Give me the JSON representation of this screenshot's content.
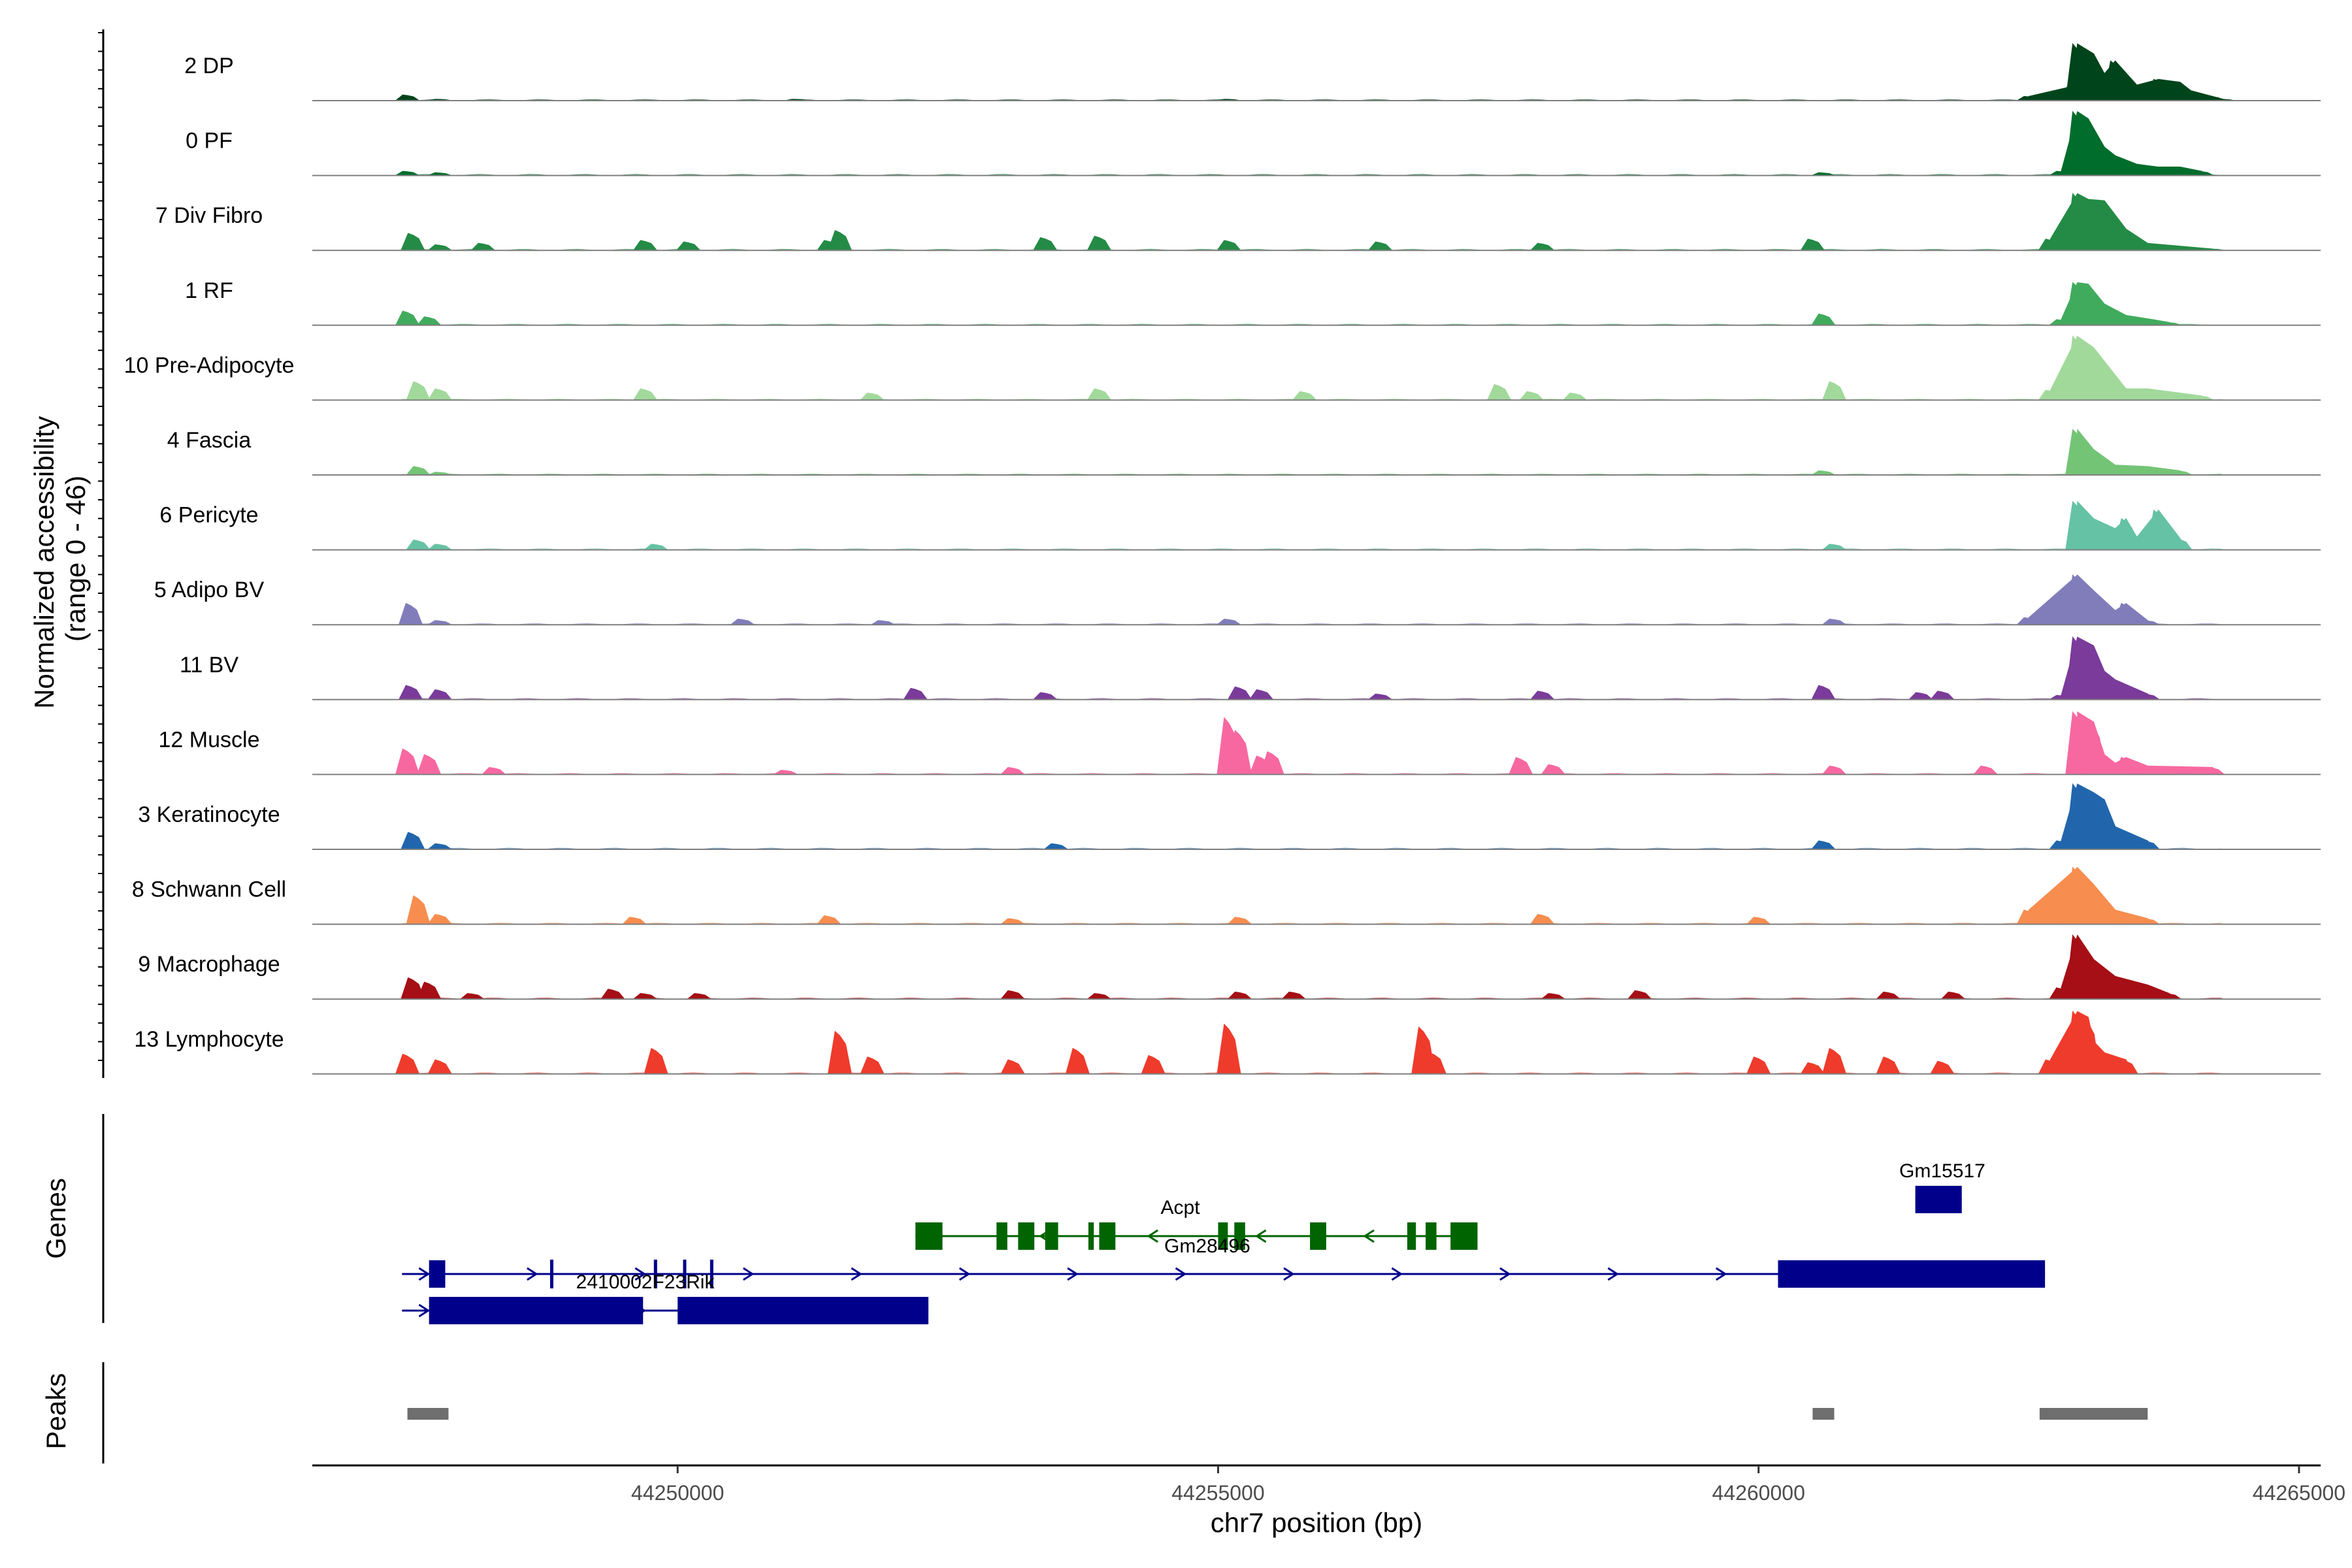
{
  "chart_data": {
    "type": "area",
    "chromosome": "chr7",
    "xlabel": "chr7 position (bp)",
    "ylabel": "Normalized accessibility\n(range 0 - 46)",
    "xlim": [
      44246620,
      44265200
    ],
    "xticks": [
      44250000,
      44255000,
      44260000,
      44265000
    ],
    "xtick_labels": [
      "44250000",
      "44255000",
      "44260000",
      "44265000"
    ],
    "ylim": [
      0,
      46
    ],
    "grid": false,
    "series": [
      {
        "name": "2 DP",
        "color": "#00441b",
        "points": [
          [
            44247500,
            4
          ],
          [
            44247800,
            1
          ],
          [
            44251100,
            1
          ],
          [
            44255100,
            1
          ],
          [
            44262500,
            3
          ],
          [
            44262900,
            10
          ],
          [
            44262950,
            40
          ],
          [
            44263100,
            33
          ],
          [
            44263200,
            19
          ],
          [
            44263300,
            28
          ],
          [
            44263500,
            11
          ],
          [
            44263700,
            15
          ],
          [
            44263900,
            13
          ],
          [
            44264000,
            7
          ],
          [
            44264200,
            3
          ],
          [
            44264300,
            1
          ]
        ]
      },
      {
        "name": "0 PF",
        "color": "#006d2c",
        "points": [
          [
            44247500,
            3
          ],
          [
            44247800,
            2
          ],
          [
            44260600,
            2
          ],
          [
            44262800,
            3
          ],
          [
            44262950,
            45
          ],
          [
            44263050,
            40
          ],
          [
            44263200,
            20
          ],
          [
            44263300,
            14
          ],
          [
            44263500,
            8
          ],
          [
            44263700,
            6
          ],
          [
            44263900,
            6
          ],
          [
            44264100,
            3
          ]
        ]
      },
      {
        "name": "7 Div Fibro",
        "color": "#238b45",
        "points": [
          [
            44247550,
            12
          ],
          [
            44247800,
            4
          ],
          [
            44248200,
            5
          ],
          [
            44249700,
            7
          ],
          [
            44250100,
            6
          ],
          [
            44251400,
            7
          ],
          [
            44251500,
            14
          ],
          [
            44253400,
            9
          ],
          [
            44253900,
            10
          ],
          [
            44255100,
            7
          ],
          [
            44256500,
            6
          ],
          [
            44258000,
            5
          ],
          [
            44260500,
            8
          ],
          [
            44262700,
            8
          ],
          [
            44262950,
            40
          ],
          [
            44263050,
            36
          ],
          [
            44263200,
            35
          ],
          [
            44263400,
            15
          ],
          [
            44263600,
            5
          ],
          [
            44264200,
            1
          ]
        ]
      },
      {
        "name": "1 RF",
        "color": "#41ab5d",
        "points": [
          [
            44247500,
            10
          ],
          [
            44247700,
            6
          ],
          [
            44260600,
            8
          ],
          [
            44262800,
            4
          ],
          [
            44262950,
            30
          ],
          [
            44263050,
            29
          ],
          [
            44263200,
            15
          ],
          [
            44263400,
            7
          ],
          [
            44263650,
            4
          ],
          [
            44263800,
            2
          ]
        ]
      },
      {
        "name": "10 Pre-Adipocyte",
        "color": "#a1d99b",
        "points": [
          [
            44247600,
            13
          ],
          [
            44247800,
            8
          ],
          [
            44249700,
            8
          ],
          [
            44251800,
            5
          ],
          [
            44253900,
            8
          ],
          [
            44255800,
            6
          ],
          [
            44257600,
            11
          ],
          [
            44257900,
            6
          ],
          [
            44258300,
            5
          ],
          [
            44260700,
            13
          ],
          [
            44262700,
            7
          ],
          [
            44262950,
            45
          ],
          [
            44263100,
            37
          ],
          [
            44263400,
            8
          ],
          [
            44263600,
            8
          ],
          [
            44263900,
            5
          ],
          [
            44264100,
            3
          ]
        ]
      },
      {
        "name": "4 Fascia",
        "color": "#74c476",
        "points": [
          [
            44247600,
            6
          ],
          [
            44247800,
            2
          ],
          [
            44260600,
            3
          ],
          [
            44262950,
            32
          ],
          [
            44263100,
            18
          ],
          [
            44263300,
            7
          ],
          [
            44263600,
            6
          ],
          [
            44263900,
            3
          ]
        ]
      },
      {
        "name": "6 Pericyte",
        "color": "#66c2a4",
        "points": [
          [
            44247600,
            7
          ],
          [
            44247800,
            4
          ],
          [
            44249800,
            4
          ],
          [
            44260700,
            4
          ],
          [
            44262950,
            34
          ],
          [
            44263100,
            22
          ],
          [
            44263300,
            15
          ],
          [
            44263400,
            22
          ],
          [
            44263500,
            9
          ],
          [
            44263700,
            28
          ],
          [
            44263900,
            8
          ]
        ]
      },
      {
        "name": "5 Adipo BV",
        "color": "#807dba",
        "points": [
          [
            44247530,
            15
          ],
          [
            44247800,
            3
          ],
          [
            44250600,
            4
          ],
          [
            44251900,
            3
          ],
          [
            44255100,
            4
          ],
          [
            44260700,
            4
          ],
          [
            44262500,
            5
          ],
          [
            44262950,
            35
          ],
          [
            44263100,
            24
          ],
          [
            44263300,
            10
          ],
          [
            44263400,
            15
          ],
          [
            44263600,
            3
          ]
        ]
      },
      {
        "name": "11 BV",
        "color": "#7a3b9a",
        "points": [
          [
            44247530,
            10
          ],
          [
            44247800,
            7
          ],
          [
            44252200,
            8
          ],
          [
            44253400,
            5
          ],
          [
            44255200,
            9
          ],
          [
            44255400,
            7
          ],
          [
            44256500,
            4
          ],
          [
            44258000,
            6
          ],
          [
            44260600,
            10
          ],
          [
            44261500,
            5
          ],
          [
            44261700,
            6
          ],
          [
            44262800,
            3
          ],
          [
            44262950,
            44
          ],
          [
            44263100,
            38
          ],
          [
            44263200,
            20
          ],
          [
            44263300,
            14
          ],
          [
            44263600,
            4
          ]
        ]
      },
      {
        "name": "12 Muscle",
        "color": "#f768a1",
        "points": [
          [
            44247500,
            18
          ],
          [
            44247700,
            14
          ],
          [
            44248300,
            5
          ],
          [
            44251000,
            3
          ],
          [
            44253100,
            5
          ],
          [
            44255100,
            40
          ],
          [
            44255200,
            31
          ],
          [
            44255400,
            13
          ],
          [
            44255500,
            16
          ],
          [
            44257800,
            12
          ],
          [
            44258100,
            7
          ],
          [
            44260700,
            6
          ],
          [
            44262100,
            6
          ],
          [
            44262950,
            44
          ],
          [
            44263100,
            37
          ],
          [
            44263200,
            14
          ],
          [
            44263300,
            8
          ],
          [
            44263400,
            12
          ],
          [
            44263600,
            6
          ],
          [
            44264200,
            5
          ]
        ]
      },
      {
        "name": "3 Keratinocyte",
        "color": "#2166ac",
        "points": [
          [
            44247550,
            12
          ],
          [
            44247800,
            4
          ],
          [
            44253500,
            4
          ],
          [
            44260600,
            6
          ],
          [
            44262800,
            6
          ],
          [
            44262950,
            46
          ],
          [
            44263100,
            40
          ],
          [
            44263200,
            35
          ],
          [
            44263300,
            16
          ],
          [
            44263600,
            6
          ]
        ]
      },
      {
        "name": "8 Schwann Cell",
        "color": "#f78d4f",
        "points": [
          [
            44247600,
            20
          ],
          [
            44247800,
            7
          ],
          [
            44249600,
            5
          ],
          [
            44251400,
            6
          ],
          [
            44253100,
            4
          ],
          [
            44255200,
            5
          ],
          [
            44258000,
            7
          ],
          [
            44260000,
            5
          ],
          [
            44262500,
            10
          ],
          [
            44262950,
            40
          ],
          [
            44263100,
            28
          ],
          [
            44263300,
            10
          ],
          [
            44263600,
            4
          ]
        ]
      },
      {
        "name": "9 Macrophage",
        "color": "#a50f15",
        "points": [
          [
            44247550,
            15
          ],
          [
            44247700,
            12
          ],
          [
            44248100,
            4
          ],
          [
            44249400,
            7
          ],
          [
            44249700,
            4
          ],
          [
            44250200,
            4
          ],
          [
            44253100,
            6
          ],
          [
            44253900,
            4
          ],
          [
            44255200,
            5
          ],
          [
            44255700,
            5
          ],
          [
            44258100,
            4
          ],
          [
            44258900,
            6
          ],
          [
            44261200,
            5
          ],
          [
            44261800,
            5
          ],
          [
            44262800,
            8
          ],
          [
            44262950,
            45
          ],
          [
            44263100,
            28
          ],
          [
            44263300,
            16
          ],
          [
            44263600,
            10
          ],
          [
            44263800,
            4
          ]
        ]
      },
      {
        "name": "13 Lymphocyte",
        "color": "#ef3b2c",
        "points": [
          [
            44247500,
            14
          ],
          [
            44247800,
            10
          ],
          [
            44249800,
            18
          ],
          [
            44251500,
            30
          ],
          [
            44251800,
            12
          ],
          [
            44253100,
            10
          ],
          [
            44253700,
            18
          ],
          [
            44254400,
            13
          ],
          [
            44255100,
            35
          ],
          [
            44256900,
            33
          ],
          [
            44257000,
            15
          ],
          [
            44260000,
            12
          ],
          [
            44260500,
            8
          ],
          [
            44260700,
            18
          ],
          [
            44261200,
            12
          ],
          [
            44261700,
            9
          ],
          [
            44262700,
            10
          ],
          [
            44262950,
            44
          ],
          [
            44263050,
            40
          ],
          [
            44263100,
            23
          ],
          [
            44263200,
            15
          ],
          [
            44263400,
            10
          ]
        ]
      }
    ],
    "genes": [
      {
        "name": "Acpt",
        "label": "Acpt",
        "strand": "-",
        "color": "#006400",
        "start": 44252200,
        "end": 44257400,
        "exons": [
          [
            44252200,
            44252450
          ],
          [
            44252950,
            44253050
          ],
          [
            44253150,
            44253300
          ],
          [
            44253400,
            44253520
          ],
          [
            44253800,
            44253850
          ],
          [
            44253900,
            44254050
          ],
          [
            44255000,
            44255090
          ],
          [
            44255150,
            44255250
          ],
          [
            44255850,
            44256000
          ],
          [
            44256750,
            44256830
          ],
          [
            44256920,
            44257020
          ],
          [
            44257150,
            44257400
          ]
        ]
      },
      {
        "name": "Gm28496",
        "label": "Gm28496",
        "strand": "+",
        "color": "#00008b",
        "start": 44247450,
        "end": 44262650,
        "exons": [
          [
            44247700,
            44247850
          ],
          [
            44248820,
            44248850
          ],
          [
            44249780,
            44249810
          ],
          [
            44250050,
            44250070
          ],
          [
            44250300,
            44250320
          ],
          [
            44260180,
            44262650
          ]
        ]
      },
      {
        "name": "2410002F23Rik",
        "label": "2410002F23Rik",
        "strand": "+",
        "color": "#00008b",
        "start": 44247450,
        "end": 44252320,
        "exons": [
          [
            44247700,
            44249680
          ],
          [
            44250000,
            44252320
          ]
        ]
      },
      {
        "name": "Gm15517",
        "label": "Gm15517",
        "strand": "+",
        "color": "#00008b",
        "start": 44261450,
        "end": 44261880,
        "exons": [
          [
            44261450,
            44261880
          ]
        ]
      }
    ],
    "peaks": [
      {
        "start": 44247500,
        "end": 44247880
      },
      {
        "start": 44260500,
        "end": 44260700
      },
      {
        "start": 44262600,
        "end": 44263600
      }
    ],
    "panel_titles": {
      "genes": "Genes",
      "peaks": "Peaks"
    }
  }
}
